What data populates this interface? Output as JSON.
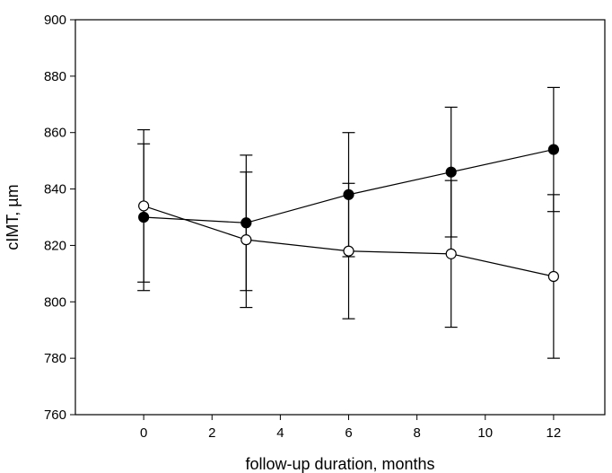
{
  "chart_data": {
    "type": "line",
    "title": "",
    "xlabel": "follow-up duration, months",
    "ylabel": "cIMT, µm",
    "xlim": [
      -2,
      13.5
    ],
    "ylim": [
      760,
      900
    ],
    "x_ticks": [
      0,
      2,
      4,
      6,
      8,
      10,
      12
    ],
    "y_ticks": [
      760,
      780,
      800,
      820,
      840,
      860,
      880,
      900
    ],
    "grid": false,
    "legend": "none",
    "series": [
      {
        "marker": "filled-circle",
        "x": [
          0,
          3,
          6,
          9,
          12
        ],
        "y": [
          830,
          828,
          838,
          846,
          854
        ],
        "err_low": [
          804,
          804,
          816,
          823,
          832
        ],
        "err_high": [
          856,
          852,
          860,
          869,
          876
        ]
      },
      {
        "marker": "open-circle",
        "x": [
          0,
          3,
          6,
          9,
          12
        ],
        "y": [
          834,
          822,
          818,
          817,
          809
        ],
        "err_low": [
          807,
          798,
          794,
          791,
          780
        ],
        "err_high": [
          861,
          846,
          842,
          843,
          838
        ]
      }
    ]
  }
}
